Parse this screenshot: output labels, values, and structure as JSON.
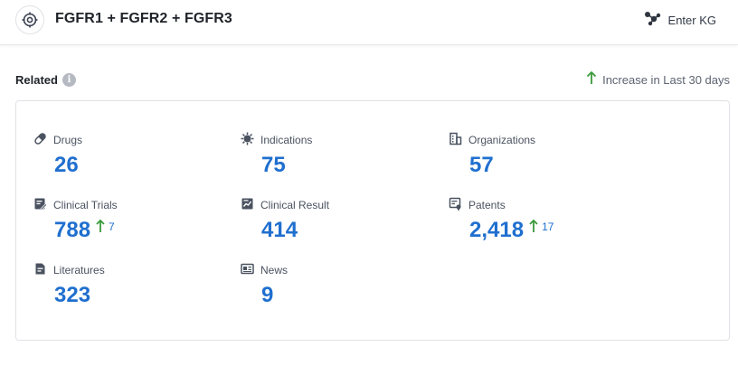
{
  "header": {
    "title": "FGFR1 + FGFR2 + FGFR3",
    "enter_kg_label": "Enter KG"
  },
  "related": {
    "title": "Related",
    "legend_label": "Increase in Last 30 days"
  },
  "colors": {
    "accent": "#1f6fcf",
    "increase": "#3a9a3a"
  },
  "stats": [
    {
      "label": "Drugs",
      "value": "26",
      "icon": "pill-icon"
    },
    {
      "label": "Indications",
      "value": "75",
      "icon": "virus-icon"
    },
    {
      "label": "Organizations",
      "value": "57",
      "icon": "building-icon"
    },
    {
      "label": "Clinical Trials",
      "value": "788",
      "increase": "7",
      "icon": "trial-icon"
    },
    {
      "label": "Clinical Result",
      "value": "414",
      "icon": "result-chart-icon"
    },
    {
      "label": "Patents",
      "value": "2,418",
      "increase": "17",
      "icon": "patent-icon"
    },
    {
      "label": "Literatures",
      "value": "323",
      "icon": "document-icon"
    },
    {
      "label": "News",
      "value": "9",
      "icon": "newspaper-icon"
    }
  ]
}
